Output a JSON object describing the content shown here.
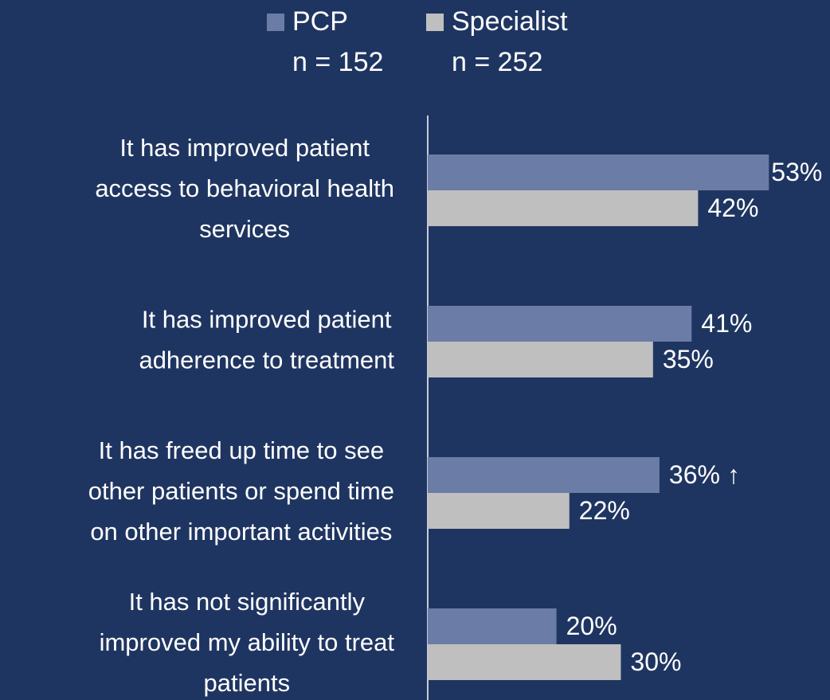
{
  "chart_data": {
    "type": "bar",
    "orientation": "horizontal",
    "categories": [
      [
        "It has  improved patient",
        "access to behavioral health",
        "services"
      ],
      [
        "It has improved patient",
        "adherence to treatment"
      ],
      [
        "It has freed up time to see",
        "other patients or spend time",
        "on other important activities"
      ],
      [
        "It has not significantly",
        "improved my ability to treat",
        "patients"
      ]
    ],
    "series": [
      {
        "name": "PCP",
        "sample": "n = 152",
        "color": "#6b7ca6",
        "values": [
          53,
          41,
          36,
          20
        ],
        "value_labels": [
          "53%",
          "41%",
          "36% ↑",
          "20%"
        ]
      },
      {
        "name": "Specialist",
        "sample": "n = 252",
        "color": "#bfbfbf",
        "values": [
          42,
          35,
          22,
          30
        ],
        "value_labels": [
          "42%",
          "35%",
          "22%",
          "30%"
        ]
      }
    ],
    "xlim": [
      0,
      62
    ]
  }
}
